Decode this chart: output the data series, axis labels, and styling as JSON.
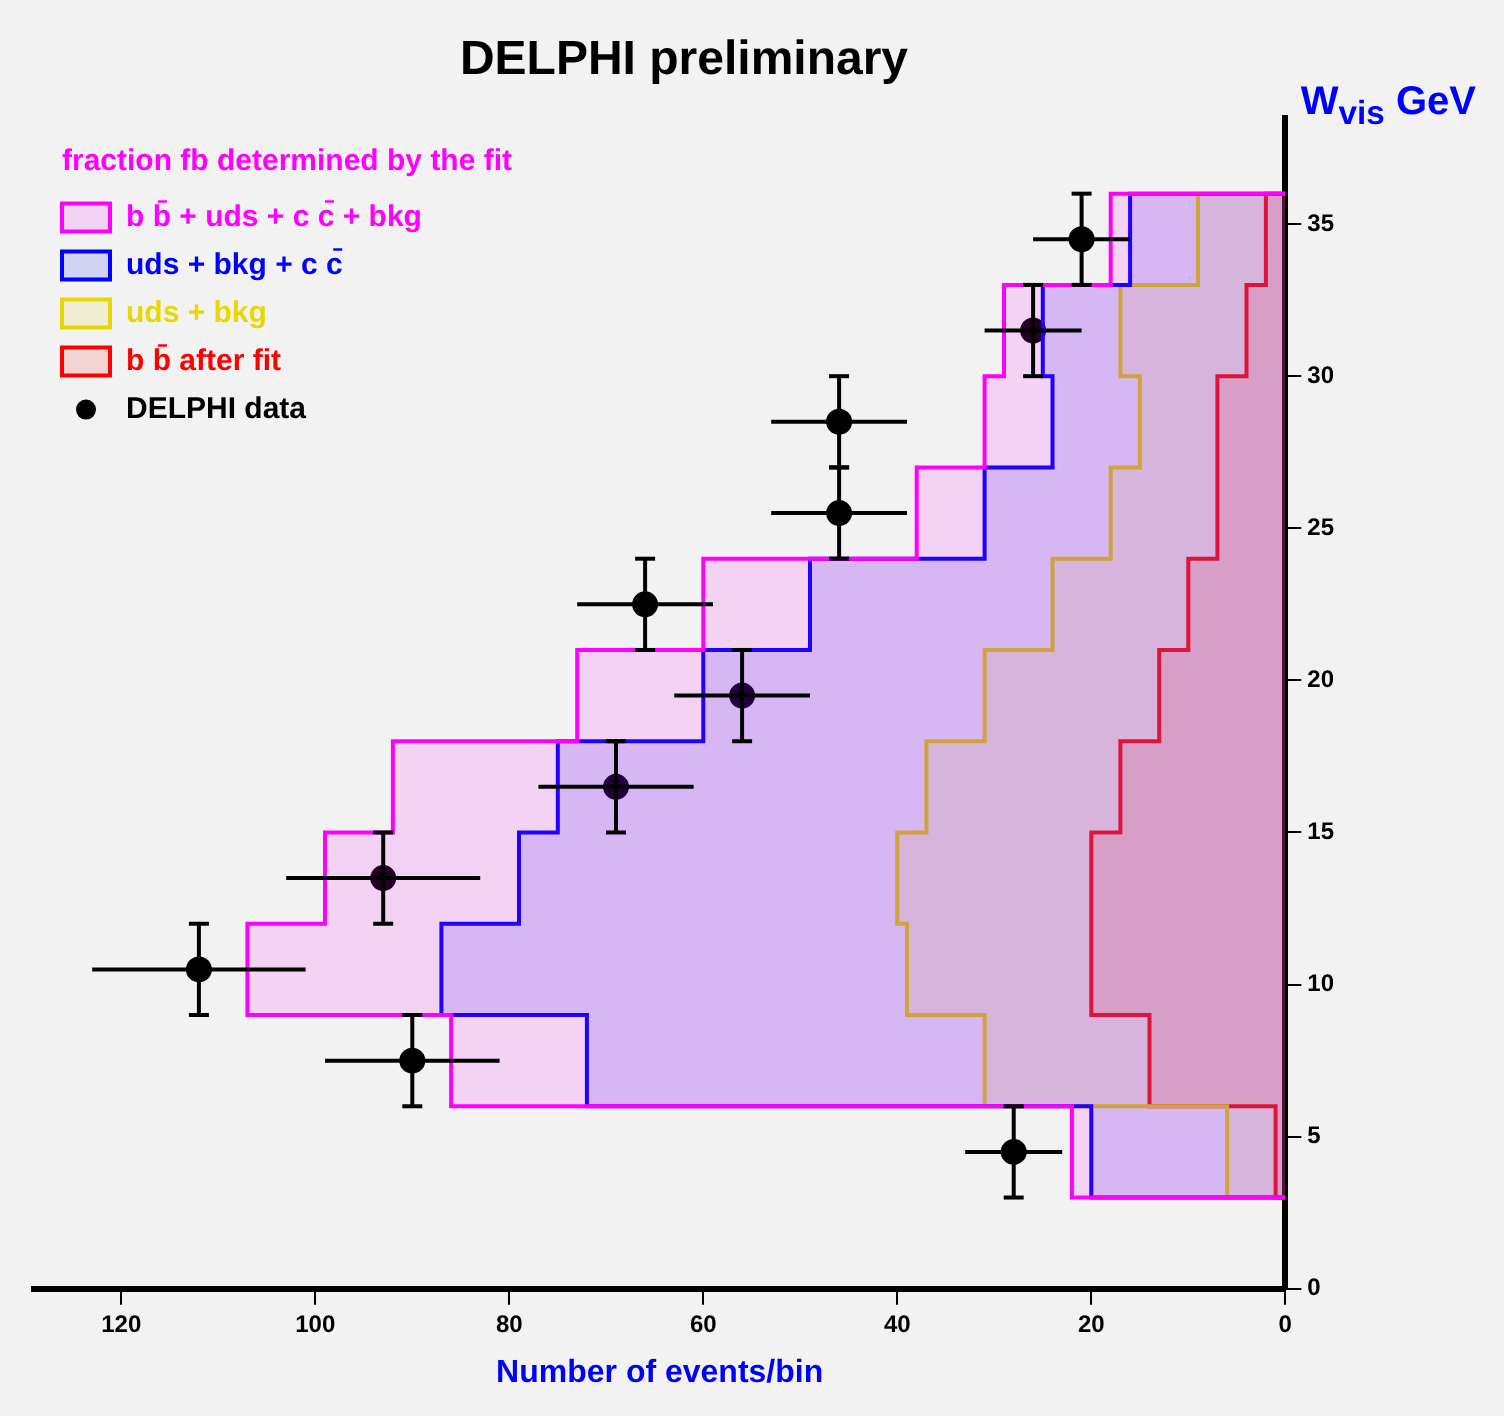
{
  "chart_data": {
    "type": "histogram",
    "title": "DELPHI preliminary",
    "xlabel": "Number of events/bin",
    "ylabel": "W$_{vis}$ GeV",
    "orientation": "horizontal",
    "legend": "top left",
    "marker": "circle",
    "annotations": [
      "fraction fb determined by the fit"
    ],
    "bins": [
      3,
      6,
      9,
      12,
      15,
      18,
      21,
      24,
      27,
      30,
      33,
      36
    ],
    "xlim": [
      129,
      0
    ],
    "xticks": [
      0,
      20,
      40,
      60,
      80,
      100,
      120
    ],
    "ylim": [
      0,
      38.5
    ],
    "yticks": [
      0,
      5,
      10,
      15,
      20,
      25,
      30,
      35
    ],
    "series": [
      {
        "name": "b b̄ + uds + c c̄ + bkg",
        "color": "#ff00ff",
        "values": [
          22,
          86,
          107,
          99,
          92,
          73,
          60,
          38,
          31,
          29,
          18
        ]
      },
      {
        "name": "uds + bkg + c c̄",
        "color": "#0000ff",
        "values": [
          20,
          72,
          87,
          79,
          75,
          60,
          49,
          31,
          24,
          25,
          16
        ]
      },
      {
        "name": "uds + bkg",
        "color": "#e6d800",
        "values": [
          6,
          31,
          39,
          40,
          37,
          31,
          24,
          18,
          15,
          17,
          9
        ]
      },
      {
        "name": "b b̄ after fit",
        "color": "#ff0000",
        "values": [
          1,
          14,
          20,
          20,
          17,
          13,
          10,
          7,
          7,
          4,
          2
        ]
      },
      {
        "name": "DELPHI data",
        "type": "scatter",
        "color": "#000000",
        "x": [
          4.5,
          7.5,
          10.5,
          13.5,
          16.5,
          19.5,
          22.5,
          25.5,
          28.5,
          31.5,
          34.5
        ],
        "values": [
          28,
          90,
          112,
          93,
          69,
          56,
          66,
          46,
          46,
          26,
          21
        ],
        "errors": [
          5,
          9,
          11,
          10,
          8,
          7,
          7,
          7,
          7,
          5,
          5
        ],
        "xerrors": [
          1.5,
          1.5,
          1.5,
          1.5,
          1.5,
          1.5,
          1.5,
          1.5,
          1.5,
          1.5,
          1.5
        ]
      }
    ]
  }
}
